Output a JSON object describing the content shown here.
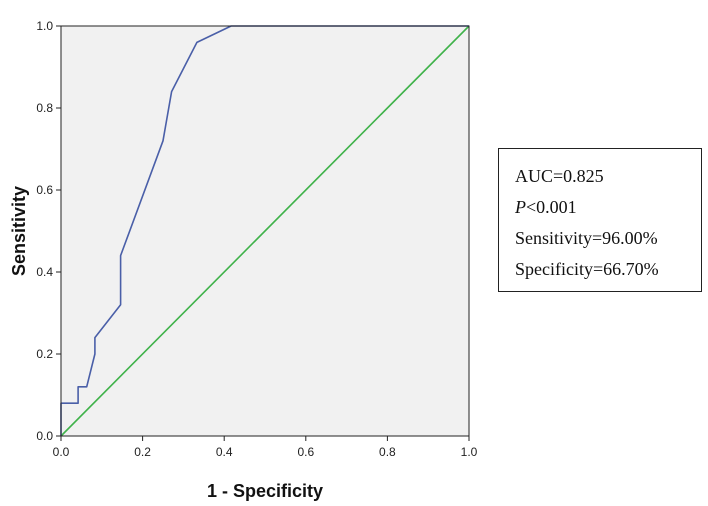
{
  "chart_data": {
    "type": "line",
    "title": "",
    "xlabel": "1 - Specificity",
    "ylabel": "Sensitivity",
    "xlim": [
      0,
      1
    ],
    "ylim": [
      0,
      1
    ],
    "x_ticks": [
      "0.0",
      "0.2",
      "0.4",
      "0.6",
      "0.8",
      "1.0"
    ],
    "y_ticks": [
      "0.0",
      "0.2",
      "0.4",
      "0.6",
      "0.8",
      "1.0"
    ],
    "background": "#f1f1f1",
    "grid": false,
    "series": [
      {
        "color": "#4a5fa8",
        "points": [
          [
            0,
            0
          ],
          [
            0,
            0.08
          ],
          [
            0.042,
            0.08
          ],
          [
            0.042,
            0.12
          ],
          [
            0.063,
            0.12
          ],
          [
            0.083,
            0.2
          ],
          [
            0.083,
            0.24
          ],
          [
            0.146,
            0.32
          ],
          [
            0.146,
            0.44
          ],
          [
            0.25,
            0.72
          ],
          [
            0.271,
            0.84
          ],
          [
            0.333,
            0.96
          ],
          [
            0.417,
            1.0
          ],
          [
            1.0,
            1.0
          ]
        ]
      },
      {
        "color": "#3fb24a",
        "points": [
          [
            0,
            0
          ],
          [
            1,
            1
          ]
        ]
      }
    ]
  },
  "stats": {
    "auc": "AUC=0.825",
    "p_symbol": "P",
    "p_value": "<0.001",
    "sensitivity": "Sensitivity=96.00%",
    "specificity": "Specificity=66.70%"
  }
}
